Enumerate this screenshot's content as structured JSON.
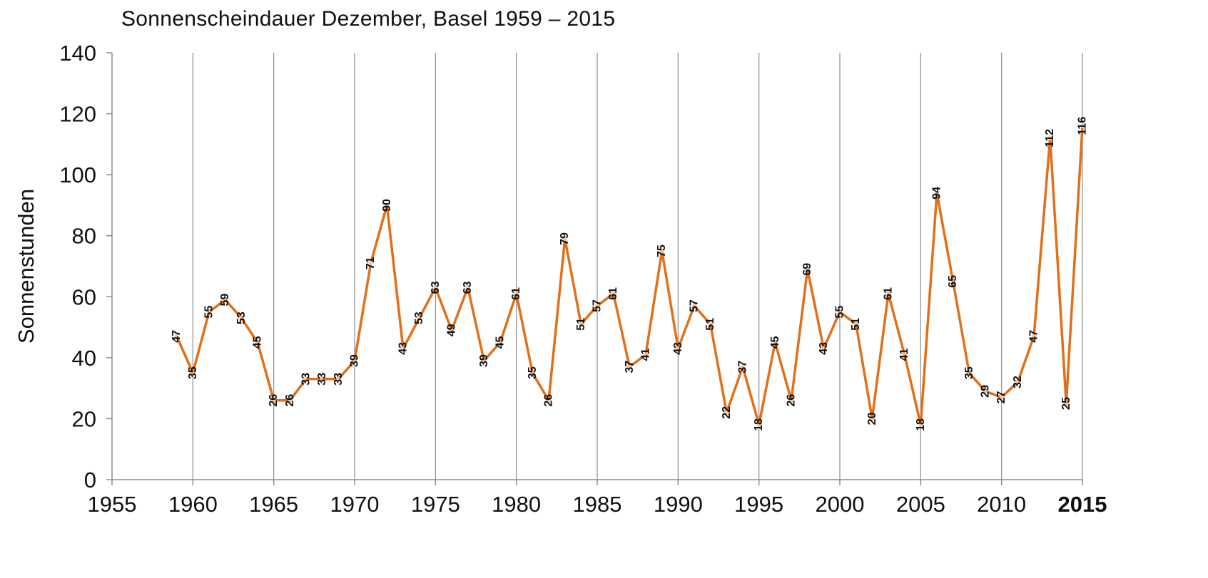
{
  "chart_data": {
    "type": "line",
    "title": "Sonnenscheindauer Dezember, Basel 1959 – 2015",
    "xlabel": "",
    "ylabel": "Sonnenstunden",
    "xlim": [
      1955,
      2015
    ],
    "ylim": [
      0,
      140
    ],
    "xticks": [
      1955,
      1960,
      1965,
      1970,
      1975,
      1980,
      1985,
      1990,
      1995,
      2000,
      2005,
      2010,
      2015
    ],
    "xticks_bold": [
      2015
    ],
    "yticks": [
      0,
      20,
      40,
      60,
      80,
      100,
      120,
      140
    ],
    "grid": "vertical",
    "line_color": "#e0701a",
    "label_rotation": "vertical",
    "x": [
      1959,
      1960,
      1961,
      1962,
      1963,
      1964,
      1965,
      1966,
      1967,
      1968,
      1969,
      1970,
      1971,
      1972,
      1973,
      1974,
      1975,
      1976,
      1977,
      1978,
      1979,
      1980,
      1981,
      1982,
      1983,
      1984,
      1985,
      1986,
      1987,
      1988,
      1989,
      1990,
      1991,
      1992,
      1993,
      1994,
      1995,
      1996,
      1997,
      1998,
      1999,
      2000,
      2001,
      2002,
      2003,
      2004,
      2005,
      2006,
      2007,
      2008,
      2009,
      2010,
      2011,
      2012,
      2013,
      2014,
      2015
    ],
    "values": [
      47,
      35,
      55,
      59,
      53,
      45,
      26,
      26,
      33,
      33,
      33,
      39,
      71,
      90,
      43,
      53,
      63,
      49,
      63,
      39,
      45,
      61,
      35,
      26,
      79,
      51,
      57,
      61,
      37,
      41,
      75,
      43,
      57,
      51,
      22,
      37,
      18,
      45,
      26,
      69,
      43,
      55,
      51,
      20,
      61,
      41,
      18,
      94,
      65,
      35,
      29,
      27,
      32,
      47,
      112,
      25,
      116
    ]
  }
}
